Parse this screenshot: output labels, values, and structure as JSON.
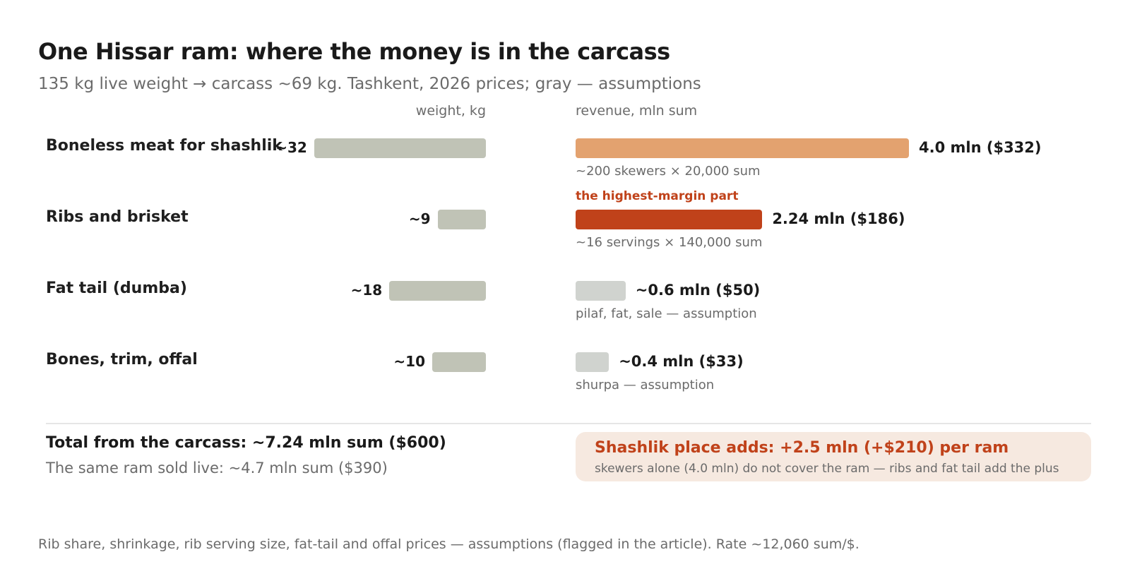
{
  "title": "One Hissar ram: where the money is in the carcass",
  "subtitle": "135 kg live weight → carcass ~69 kg. Tashkent, 2026 prices; gray — assumptions",
  "colors": {
    "weight_bar": "#c0c3b6",
    "shashlik_bar": "#e3a26f",
    "ribs_bar": "#c0421a",
    "assumption_bar": "#d0d3cf",
    "accent": "#c0421a",
    "callout_bg": "#f6e9e0"
  },
  "chart_data": {
    "type": "bar",
    "categories": [
      "Boneless meat for shashlik",
      "Ribs and brisket",
      "Fat tail (dumba)",
      "Bones, trim, offal"
    ],
    "weight_axis_label": "weight, kg",
    "revenue_axis_label": "revenue, mln sum",
    "series": [
      {
        "values": [
          32,
          9,
          18,
          10
        ],
        "labels": [
          "~32",
          "~9",
          "~18",
          "~10"
        ]
      },
      {
        "values": [
          4.0,
          2.24,
          0.6,
          0.4
        ],
        "labels": [
          "4.0 mln ($332)",
          "2.24 mln ($186)",
          "~0.6 mln ($50)",
          "~0.4 mln ($33)"
        ]
      }
    ],
    "notes": [
      "~200 skewers × 20,000 sum",
      "~16 servings × 140,000 sum",
      "pilaf, fat, sale — assumption",
      "shurpa — assumption"
    ],
    "highlight_label": "the highest-margin part",
    "assumption_flags": [
      false,
      false,
      true,
      true
    ]
  },
  "total": {
    "title": "Total from the carcass: ~7.24 mln sum ($600)",
    "sub": "The same ram sold live: ~4.7 mln sum ($390)"
  },
  "callout": {
    "title": "Shashlik place adds: +2.5 mln (+$210) per ram",
    "sub": "skewers alone (4.0 mln) do not cover the ram — ribs and fat tail add the plus"
  },
  "footnote": "Rib share, shrinkage, rib serving size, fat-tail and offal prices — assumptions (flagged in the article). Rate ~12,060 sum/$."
}
